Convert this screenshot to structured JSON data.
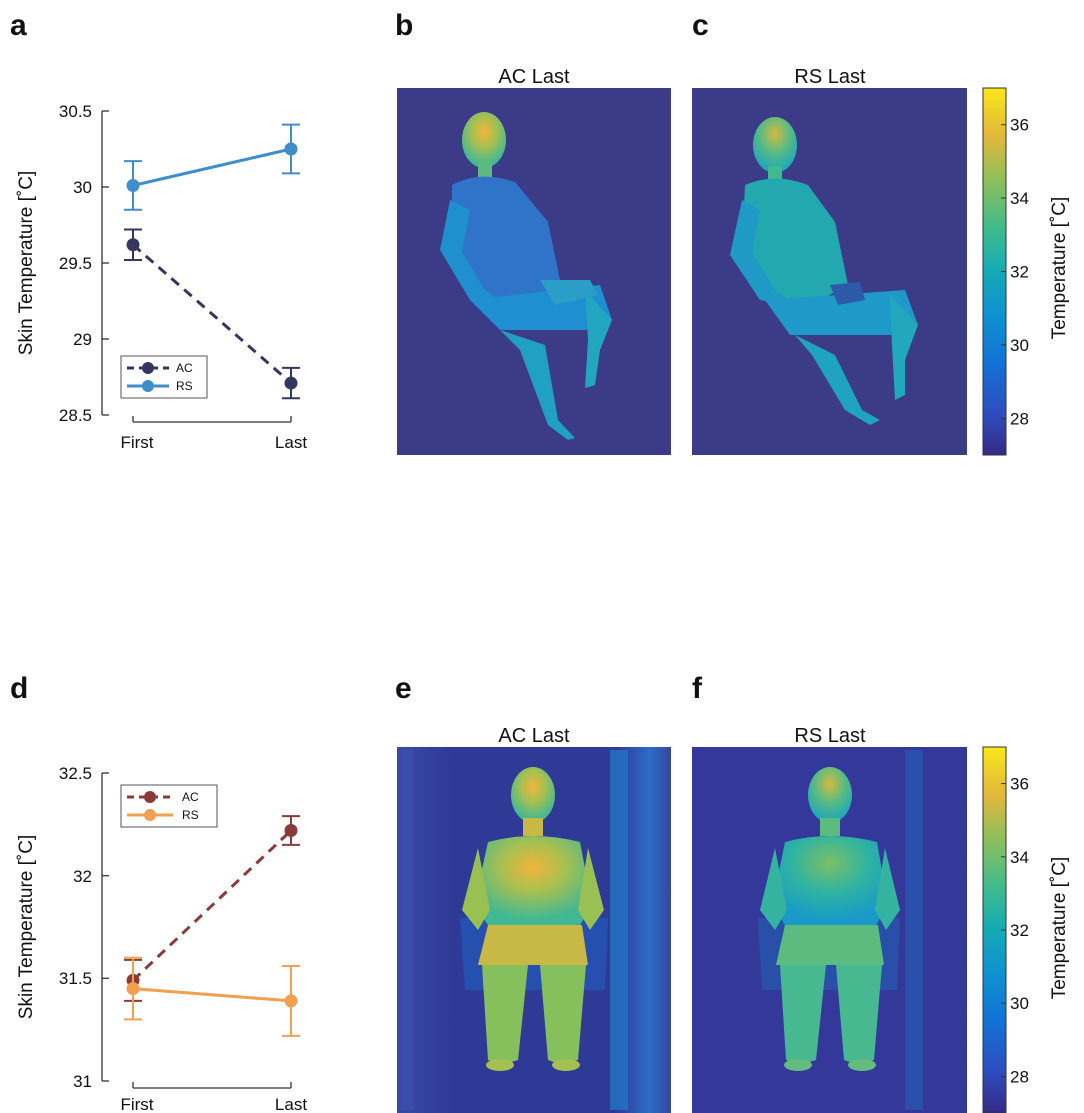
{
  "panels": {
    "a": "a",
    "b": "b",
    "c": "c",
    "d": "d",
    "e": "e",
    "f": "f"
  },
  "colors": {
    "ac_top": "#35365f",
    "rs_top": "#3f8dc9",
    "ac_bottom": "#8b3a3a",
    "rs_bottom": "#f0a050",
    "thermal_bg": "#3b3b88"
  },
  "chart_data": [
    {
      "type": "line",
      "id": "a",
      "categories": [
        "First",
        "Last"
      ],
      "ylabel": "Skin Temperature [˚C]",
      "ylim": [
        28.5,
        30.5
      ],
      "yticks": [
        "28.5",
        "29",
        "29.5",
        "30",
        "30.5"
      ],
      "legend_position": "lower-left",
      "series": [
        {
          "name": "AC",
          "style": "dashed",
          "values": [
            29.62,
            28.71
          ],
          "err": [
            0.1,
            0.1
          ]
        },
        {
          "name": "RS",
          "style": "solid",
          "values": [
            30.01,
            30.25
          ],
          "err": [
            0.16,
            0.16
          ]
        }
      ]
    },
    {
      "type": "heatmap",
      "id": "b",
      "title": "AC Last"
    },
    {
      "type": "heatmap",
      "id": "c",
      "title": "RS Last",
      "colorbar": {
        "label": "Temperature [˚C]",
        "ticks": [
          "28",
          "30",
          "32",
          "34",
          "36"
        ],
        "range": [
          27,
          37
        ]
      }
    },
    {
      "type": "line",
      "id": "d",
      "categories": [
        "First",
        "Last"
      ],
      "ylabel": "Skin Temperature [˚C]",
      "ylim": [
        31,
        32.5
      ],
      "yticks": [
        "31",
        "31.5",
        "32",
        "32.5"
      ],
      "legend_position": "top-left",
      "series": [
        {
          "name": "AC",
          "style": "dashed",
          "values": [
            31.49,
            32.22
          ],
          "err": [
            0.1,
            0.07
          ]
        },
        {
          "name": "RS",
          "style": "solid",
          "values": [
            31.45,
            31.39
          ],
          "err": [
            0.15,
            0.17
          ]
        }
      ]
    },
    {
      "type": "heatmap",
      "id": "e",
      "title": "AC Last"
    },
    {
      "type": "heatmap",
      "id": "f",
      "title": "RS Last",
      "colorbar": {
        "label": "Temperature [˚C]",
        "ticks": [
          "28",
          "30",
          "32",
          "34",
          "36"
        ],
        "range": [
          27,
          37
        ]
      }
    }
  ]
}
